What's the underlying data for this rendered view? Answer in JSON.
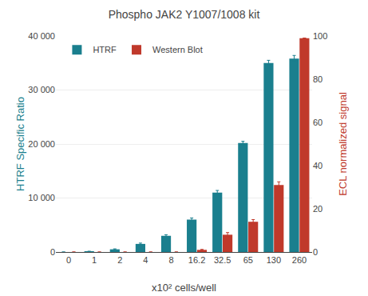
{
  "chart_data": {
    "type": "bar",
    "title": "Phospho JAK2 Y1007/1008 kit",
    "categories": [
      "0",
      "1",
      "2",
      "4",
      "8",
      "16.2",
      "32.5",
      "65",
      "130",
      "260"
    ],
    "xlabel": "x10² cells/well",
    "ylabel": "HTRF Specific Ratio",
    "y2label": "ECL normalized signal",
    "series": [
      {
        "name": "HTRF",
        "color": "#1a7f8e",
        "values": [
          0,
          100,
          500,
          1500,
          3000,
          6000,
          11000,
          20200,
          35000,
          35800
        ],
        "errors": [
          0,
          50,
          80,
          150,
          200,
          300,
          400,
          300,
          500,
          600
        ]
      },
      {
        "name": "Western Blot",
        "color": "#c0392b",
        "axis": "y2",
        "values": [
          0,
          0,
          0,
          0,
          0,
          1,
          8,
          14,
          31,
          99
        ],
        "errors": [
          0,
          0,
          0,
          0,
          0,
          0.2,
          1,
          1,
          1.5,
          0
        ]
      }
    ],
    "ylim": [
      0,
      40000
    ],
    "yticks": [
      0,
      {
        "value": 10000,
        "label": "10 000"
      },
      {
        "value": 20000,
        "label": "20 000"
      },
      {
        "value": 30000,
        "label": "30 000"
      },
      {
        "value": 40000,
        "label": "40 000"
      }
    ],
    "y2lim": [
      0,
      100
    ],
    "y2ticks": [
      0,
      20,
      40,
      60,
      80,
      100
    ],
    "grid": true,
    "legend": "upper left"
  }
}
